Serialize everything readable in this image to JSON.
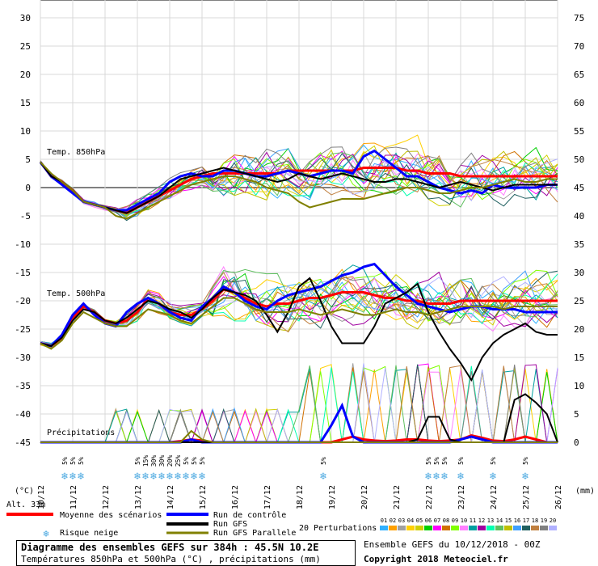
{
  "chart_data": {
    "type": "line",
    "title": "Diagramme des ensembles GEFS sur 384h : 45.5N 10.2E",
    "subtitle": "Températures 850hPa et 500hPa (°C) , précipitations (mm)",
    "ylabel_left": "(°C)",
    "ylabel_right": "(mm)",
    "altitude_label": "Alt. 33m",
    "ylim_left": [
      -45,
      30
    ],
    "ylim_right": [
      0,
      75
    ],
    "left_ticks": [
      30,
      25,
      20,
      15,
      10,
      5,
      0,
      -5,
      -10,
      -15,
      -20,
      -25,
      -30,
      -35,
      -40,
      -45
    ],
    "right_ticks": [
      75,
      70,
      65,
      60,
      55,
      50,
      45,
      40,
      35,
      30,
      25,
      20,
      15,
      10,
      5,
      0
    ],
    "x_dates": [
      "10/12",
      "11/12",
      "12/12",
      "13/12",
      "14/12",
      "15/12",
      "16/12",
      "17/12",
      "18/12",
      "19/12",
      "20/12",
      "21/12",
      "22/12",
      "23/12",
      "24/12",
      "25/12",
      "26/12"
    ],
    "labels": {
      "t850": "Temp. 850hPa",
      "t500": "Temp. 500hPa",
      "precip": "Précipitations"
    },
    "snow_risk_label": "5%",
    "snow_risk_positions": [
      0.75,
      1.0,
      1.25,
      3.0,
      3.25,
      3.5,
      3.75,
      4.0,
      4.25,
      4.5,
      4.75,
      5.0,
      8.75,
      12.0,
      12.25,
      12.5,
      13.0,
      14.0,
      15.0
    ],
    "snow_risk_values": [
      "5%",
      "5%",
      "5%",
      "5%",
      "15%",
      "30%",
      "30%",
      "20%",
      "25%",
      "5%",
      "5%",
      "5%",
      "5%",
      "5%",
      "5%",
      "5%",
      "5%",
      "5%",
      "5%"
    ],
    "series": [
      {
        "name": "Moyenne des scénarios",
        "color": "#ff0000",
        "t850": [
          4.5,
          2.0,
          1.0,
          -0.5,
          -2.5,
          -3.0,
          -3.5,
          -4.0,
          -4.5,
          -3.5,
          -2.5,
          -1.5,
          -0.5,
          0.5,
          1.5,
          2.0,
          2.5,
          2.5,
          2.5,
          2.5,
          2.5,
          2.5,
          2.5,
          3.0,
          3.0,
          3.0,
          3.0,
          3.0,
          3.0,
          3.0,
          3.5,
          3.5,
          3.5,
          3.5,
          3.0,
          3.0,
          2.5,
          2.5,
          2.5,
          2.0,
          2.0,
          2.0,
          2.0,
          2.0,
          2.0,
          2.0,
          2.0,
          2.0,
          2.0
        ],
        "t500": [
          -27.5,
          -28.0,
          -26.5,
          -23.0,
          -21.0,
          -22.0,
          -23.5,
          -24.0,
          -23.5,
          -22.0,
          -19.5,
          -20.5,
          -22.0,
          -22.5,
          -22.5,
          -21.5,
          -20.0,
          -18.0,
          -18.5,
          -19.5,
          -20.5,
          -21.0,
          -20.5,
          -20.5,
          -20.0,
          -19.5,
          -19.5,
          -19.0,
          -18.5,
          -18.5,
          -18.5,
          -19.0,
          -19.5,
          -19.5,
          -20.0,
          -20.0,
          -20.5,
          -20.5,
          -20.5,
          -20.0,
          -20.0,
          -20.0,
          -20.0,
          -20.0,
          -20.0,
          -20.0,
          -20.0,
          -20.0,
          -20.0
        ],
        "precip": [
          0,
          0,
          0,
          0,
          0,
          0,
          0,
          0,
          0,
          0,
          0,
          0,
          0,
          0.2,
          0.5,
          0.3,
          0,
          0,
          0,
          0,
          0,
          0,
          0,
          0,
          0,
          0,
          0,
          0,
          0.5,
          1,
          0.5,
          0.3,
          0.2,
          0.3,
          0.5,
          0.5,
          0.3,
          0.2,
          0.3,
          0.5,
          1.2,
          0.8,
          0.3,
          0.2,
          0.5,
          1.0,
          0.5,
          0,
          0
        ]
      },
      {
        "name": "Run de contrôle",
        "color": "#0000ff",
        "t850": [
          4.5,
          2.0,
          0.5,
          -1.0,
          -2.5,
          -3.0,
          -3.5,
          -4.0,
          -4.0,
          -3.0,
          -2.0,
          -1.0,
          1.0,
          2.0,
          2.5,
          2.0,
          2.0,
          3.0,
          3.0,
          2.5,
          2.0,
          2.0,
          2.5,
          3.0,
          2.5,
          2.0,
          2.5,
          3.0,
          3.0,
          2.5,
          5.5,
          6.5,
          5.0,
          3.5,
          2.0,
          2.0,
          1.0,
          0.0,
          -0.5,
          -1.0,
          -0.5,
          -1.0,
          0.5,
          0.0,
          0.0,
          0.0,
          0.0,
          0.5,
          0.5
        ],
        "t500": [
          -27.5,
          -28.0,
          -26.0,
          -22.5,
          -20.5,
          -22.5,
          -24.0,
          -24.5,
          -22.0,
          -20.5,
          -19.5,
          -20.5,
          -22.0,
          -23.0,
          -23.5,
          -21.0,
          -19.5,
          -17.5,
          -18.5,
          -20.0,
          -21.0,
          -21.5,
          -20.0,
          -19.0,
          -18.5,
          -18.0,
          -17.5,
          -16.5,
          -15.5,
          -15.0,
          -14.0,
          -13.5,
          -15.5,
          -17.5,
          -19.0,
          -20.5,
          -21.0,
          -21.5,
          -22.0,
          -21.5,
          -21.0,
          -21.0,
          -21.5,
          -21.5,
          -21.5,
          -22.0,
          -22.0,
          -22.0,
          -22.0
        ],
        "precip": [
          0,
          0,
          0,
          0,
          0,
          0,
          0,
          0,
          0,
          0,
          0,
          0,
          0,
          0,
          0.5,
          0,
          0,
          0,
          0,
          0,
          0,
          0,
          0,
          0,
          0,
          0,
          0,
          3,
          6.5,
          1,
          0,
          0,
          0,
          0,
          0,
          0,
          0,
          0,
          0,
          0.5,
          1,
          0.5,
          0,
          0,
          0,
          0,
          0,
          0,
          0
        ]
      },
      {
        "name": "Run GFS",
        "color": "#000000",
        "t850": [
          4.5,
          2.0,
          1.0,
          -0.5,
          -2.5,
          -3.0,
          -3.5,
          -4.0,
          -4.5,
          -3.5,
          -2.5,
          -1.5,
          0.0,
          1.5,
          2.0,
          2.5,
          3.0,
          3.5,
          3.0,
          2.5,
          2.0,
          1.5,
          1.0,
          1.5,
          2.5,
          2.0,
          1.5,
          2.0,
          2.5,
          2.0,
          1.5,
          1.0,
          1.0,
          1.5,
          1.5,
          1.0,
          0.5,
          0.0,
          0.5,
          1.0,
          0.5,
          0.0,
          -0.5,
          0.0,
          0.5,
          0.5,
          0.5,
          0.5,
          0.5
        ],
        "t500": [
          -27.5,
          -28.0,
          -26.5,
          -23.5,
          -21.5,
          -22.0,
          -23.5,
          -24.0,
          -23.0,
          -21.5,
          -20.0,
          -20.5,
          -21.5,
          -22.0,
          -23.0,
          -21.5,
          -19.5,
          -18.0,
          -18.5,
          -19.0,
          -20.0,
          -22.5,
          -25.5,
          -22.0,
          -17.5,
          -16.0,
          -20.0,
          -24.5,
          -27.5,
          -27.5,
          -27.5,
          -24.5,
          -20.5,
          -19.5,
          -18.5,
          -17.0,
          -22.0,
          -25.5,
          -28.5,
          -31.0,
          -34.0,
          -30.0,
          -27.5,
          -26.0,
          -25.0,
          -24.0,
          -25.5,
          -26.0,
          -26.0
        ],
        "precip": [
          0,
          0,
          0,
          0,
          0,
          0,
          0,
          0,
          0,
          0,
          0,
          0,
          0,
          0,
          0,
          0,
          0,
          0,
          0,
          0,
          0,
          0,
          0,
          0,
          0,
          0,
          0,
          0,
          0,
          0,
          0,
          0,
          0,
          0,
          0,
          0.5,
          4.5,
          4.5,
          0.5,
          0,
          0,
          0,
          0,
          0,
          7.5,
          8.5,
          7.0,
          5.0,
          0
        ]
      },
      {
        "name": "Run GFS Parallele",
        "color": "#808000",
        "t850": [
          4.5,
          2.5,
          1.0,
          -0.5,
          -2.5,
          -3.0,
          -3.5,
          -5.0,
          -5.5,
          -4.5,
          -3.5,
          -2.5,
          -1.5,
          -0.5,
          0.5,
          1.0,
          1.5,
          2.0,
          2.0,
          1.5,
          1.0,
          0.0,
          -0.5,
          -1.0,
          -2.5,
          -3.5,
          -3.0,
          -2.5,
          -2.0,
          -2.0,
          -2.0,
          -1.5,
          -1.0,
          -0.5,
          0.0,
          0.0,
          -0.5,
          -1.0,
          -1.0,
          -0.5,
          0.0,
          0.0,
          0.5,
          1.0,
          1.5,
          1.0,
          1.0,
          1.5,
          1.5
        ],
        "t500": [
          -27.5,
          -28.5,
          -27.0,
          -24.0,
          -22.0,
          -23.0,
          -24.0,
          -24.5,
          -24.5,
          -23.0,
          -21.5,
          -22.0,
          -22.5,
          -23.5,
          -24.0,
          -22.5,
          -21.0,
          -19.5,
          -19.5,
          -20.5,
          -21.5,
          -22.0,
          -22.0,
          -22.0,
          -21.5,
          -22.0,
          -22.5,
          -22.0,
          -21.5,
          -22.0,
          -22.5,
          -22.5,
          -22.0,
          -21.5,
          -22.0,
          -22.0,
          -22.5,
          -22.0,
          -21.5,
          -21.0,
          -21.0,
          -21.0,
          -21.0,
          -21.5,
          -21.0,
          -21.0,
          -21.0,
          -21.0,
          -21.0
        ],
        "precip": [
          0,
          0,
          0,
          0,
          0,
          0,
          0,
          0,
          0,
          0,
          0,
          0,
          0,
          0,
          2,
          0.5,
          0,
          0,
          0,
          0,
          0,
          0,
          0,
          0,
          0,
          0,
          0,
          0,
          0,
          0,
          0,
          0,
          0,
          0,
          0,
          0,
          0,
          0,
          0,
          0,
          0,
          0,
          0,
          0,
          0,
          0,
          0,
          0,
          0
        ]
      }
    ],
    "perturbations": {
      "label": "20 Perturbations",
      "ids": [
        "01",
        "02",
        "03",
        "04",
        "05",
        "06",
        "07",
        "08",
        "09",
        "10",
        "11",
        "12",
        "13",
        "14",
        "15",
        "16",
        "17",
        "18",
        "19",
        "20"
      ],
      "colors": [
        "#30b0ff",
        "#ffa000",
        "#a0a0a0",
        "#ffd000",
        "#d0d000",
        "#00d000",
        "#ff00ff",
        "#d07000",
        "#80ff00",
        "#ff80ff",
        "#00a0a0",
        "#a000a0",
        "#00ffb0",
        "#60c060",
        "#c0c000",
        "#40a0ff",
        "#206060",
        "#c08040",
        "#808080",
        "#b0b0ff"
      ]
    },
    "legend": {
      "mean": "Moyenne des scénarios",
      "control": "Run de contrôle",
      "gfs": "Run GFS",
      "gfs_parallel": "Run GFS Parallele",
      "snow": "Risque neige"
    },
    "grid": true
  },
  "footer": {
    "title": "Diagramme des ensembles GEFS sur 384h : 45.5N 10.2E",
    "subtitle": "Températures 850hPa et 500hPa (°C) , précipitations (mm)",
    "run_info": "Ensemble GEFS du 10/12/2018 - 00Z",
    "copyright": "Copyright 2018 Meteociel.fr"
  }
}
